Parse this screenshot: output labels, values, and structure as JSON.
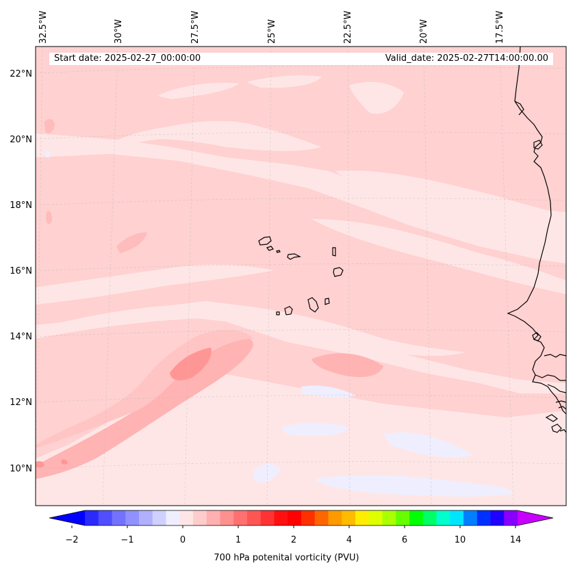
{
  "map": {
    "start_date": "Start date: 2025-02-27_00:00:00",
    "valid_date": "Valid_date: 2025-02-27T14:00:00.00",
    "longitude_labels": [
      "32.5°W",
      "30°W",
      "27.5°W",
      "25°W",
      "22.5°W",
      "20°W",
      "17.5°W"
    ],
    "latitude_labels": [
      "22°N",
      "20°N",
      "18°N",
      "16°N",
      "14°N",
      "12°N",
      "10°N"
    ],
    "colorbar": {
      "title": "700 hPa potenital vorticity (PVU)",
      "tick_labels": [
        "−2",
        "−1",
        "0",
        "1",
        "2",
        "4",
        "6",
        "10",
        "14"
      ],
      "colors": [
        "#0000ff",
        "#2a2aff",
        "#4f4fff",
        "#7272ff",
        "#9090ff",
        "#b0b0ff",
        "#d0d0ff",
        "#eeeeff",
        "#ffe6e6",
        "#ffcccc",
        "#ffb0b0",
        "#ff9090",
        "#ff7070",
        "#ff5555",
        "#ff3333",
        "#ff1010",
        "#ff0000",
        "#ff3000",
        "#ff6600",
        "#ff9900",
        "#ffbb00",
        "#ffee00",
        "#ddff00",
        "#aaff00",
        "#66ff00",
        "#00ff00",
        "#00ff66",
        "#00ffcc",
        "#00e5ff",
        "#0080ff",
        "#0030ff",
        "#2000ff",
        "#8800ff",
        "#c800ff"
      ]
    }
  }
}
